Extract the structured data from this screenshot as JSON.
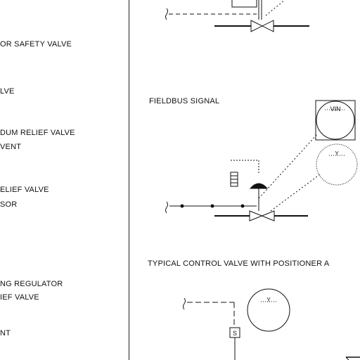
{
  "left_legend": {
    "items": [
      "OR SAFETY VALVE",
      "LVE",
      "DUM RELIEF VALVE",
      "VENT",
      "ELIEF VALVE",
      "SOR",
      "NG REGULATOR",
      "IEF VALVE",
      "NT"
    ]
  },
  "right_panel": {
    "fieldbus_label": "FIELDBUS SIGNAL",
    "typical_label": "TYPICAL CONTROL VALVE WITH POSITIONER A",
    "instrument_tag": "VIN",
    "solenoid_tag": "S"
  }
}
